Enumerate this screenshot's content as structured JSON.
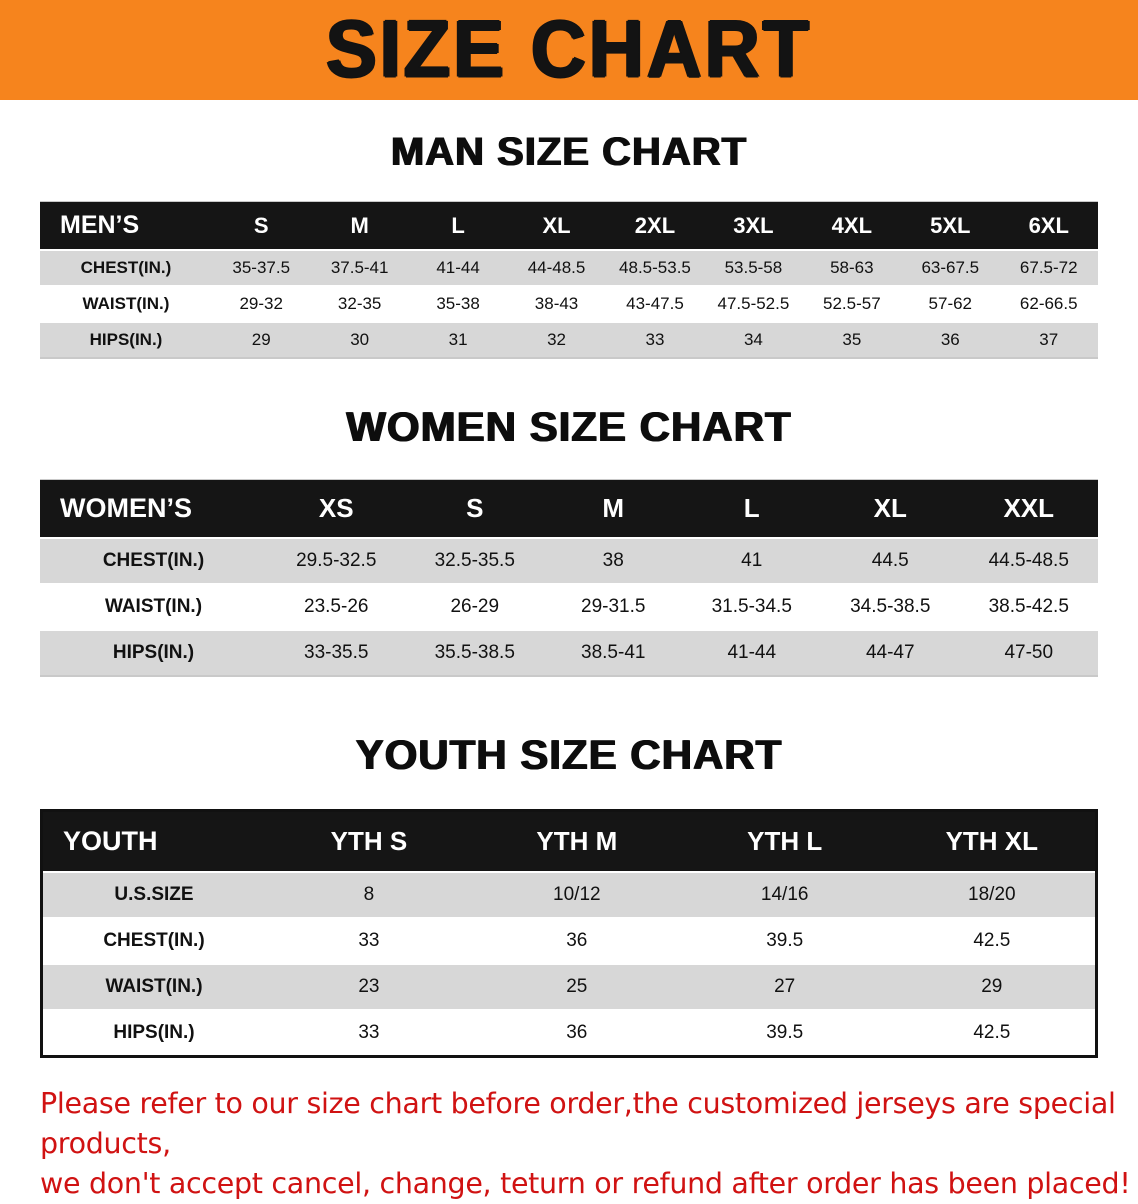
{
  "banner": {
    "title": "SIZE CHART",
    "bg_color": "#f6841d"
  },
  "colors": {
    "header_row_bg": "#151515",
    "stripe_row_bg": "#d7d7d7",
    "notice_text": "#d01212"
  },
  "sections": [
    {
      "heading": "MAN SIZE CHART",
      "table": {
        "header": [
          "MEN’S",
          "S",
          "M",
          "L",
          "XL",
          "2XL",
          "3XL",
          "4XL",
          "5XL",
          "6XL"
        ],
        "rows": [
          [
            "CHEST(IN.)",
            "35-37.5",
            "37.5-41",
            "41-44",
            "44-48.5",
            "48.5-53.5",
            "53.5-58",
            "58-63",
            "63-67.5",
            "67.5-72"
          ],
          [
            "WAIST(IN.)",
            "29-32",
            "32-35",
            "35-38",
            "38-43",
            "43-47.5",
            "47.5-52.5",
            "52.5-57",
            "57-62",
            "62-66.5"
          ],
          [
            "HIPS(IN.)",
            "29",
            "30",
            "31",
            "32",
            "33",
            "34",
            "35",
            "36",
            "37"
          ]
        ]
      }
    },
    {
      "heading": "WOMEN SIZE CHART",
      "table": {
        "header": [
          "WOMEN’S",
          "XS",
          "S",
          "M",
          "L",
          "XL",
          "XXL"
        ],
        "rows": [
          [
            "CHEST(IN.)",
            "29.5-32.5",
            "32.5-35.5",
            "38",
            "41",
            "44.5",
            "44.5-48.5"
          ],
          [
            "WAIST(IN.)",
            "23.5-26",
            "26-29",
            "29-31.5",
            "31.5-34.5",
            "34.5-38.5",
            "38.5-42.5"
          ],
          [
            "HIPS(IN.)",
            "33-35.5",
            "35.5-38.5",
            "38.5-41",
            "41-44",
            "44-47",
            "47-50"
          ]
        ]
      }
    },
    {
      "heading": "YOUTH SIZE CHART",
      "table": {
        "header": [
          "YOUTH",
          "YTH S",
          "YTH M",
          "YTH L",
          "YTH XL"
        ],
        "rows": [
          [
            "U.S.SIZE",
            "8",
            "10/12",
            "14/16",
            "18/20"
          ],
          [
            "CHEST(IN.)",
            "33",
            "36",
            "39.5",
            "42.5"
          ],
          [
            "WAIST(IN.)",
            "23",
            "25",
            "27",
            "29"
          ],
          [
            "HIPS(IN.)",
            "33",
            "36",
            "39.5",
            "42.5"
          ]
        ]
      }
    }
  ],
  "notice": {
    "line1": "Please refer to our size chart before order,the customized jerseys are special products,",
    "line2": "we don't accept cancel, change, teturn or refund after order has been placed!"
  }
}
